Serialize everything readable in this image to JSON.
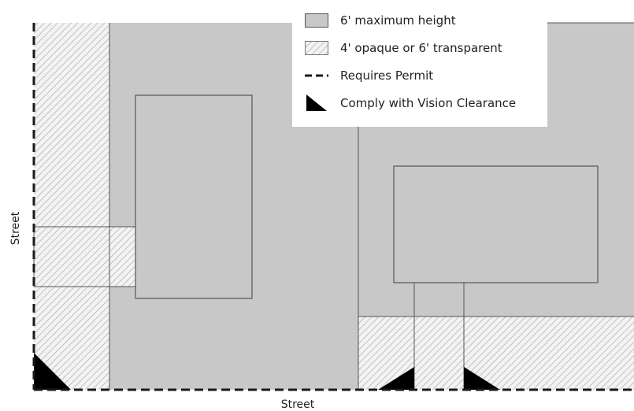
{
  "colors": {
    "max_height_fill": "#c8c8c8",
    "hatch_bg": "#f3f3f3",
    "hatch_line": "#b4b4b4",
    "outline": "#555555",
    "permit_line": "#1a1a1a",
    "vision_clearance": "#000000"
  },
  "legend": {
    "items": [
      {
        "label": "6' maximum height",
        "swatch": "solid-gray"
      },
      {
        "label": "4' opaque or 6' transparent",
        "swatch": "hatched"
      },
      {
        "label": "Requires Permit",
        "swatch": "dashed-line"
      },
      {
        "label": "Comply with Vision Clearance",
        "swatch": "black-triangle"
      }
    ]
  },
  "labels": {
    "street_left": "Street",
    "street_bottom": "Street"
  }
}
